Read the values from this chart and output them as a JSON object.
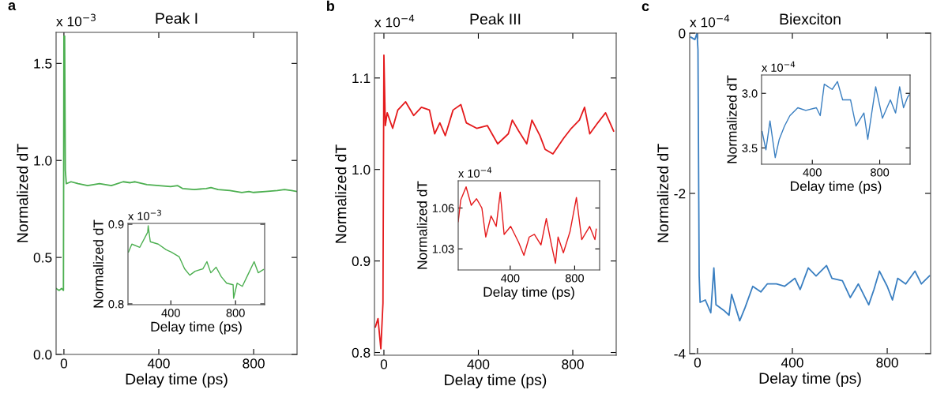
{
  "chart_data": [
    {
      "type": "line",
      "title": "Peak I",
      "xlabel": "Delay time (ps)",
      "ylabel": "Normalized dT",
      "annotations": [
        "a",
        "x 10$^{−3}$"
      ],
      "xlim": [
        -33,
        983
      ],
      "ylim": [
        0,
        1.66
      ],
      "xticks": [
        0,
        400,
        800
      ],
      "yticks": [
        {
          "value": 0,
          "label": "0.0"
        },
        0.5,
        {
          "value": 1,
          "label": "1.0"
        },
        1.5
      ],
      "series": [
        {
          "color": "#4caf50",
          "x": [
            -33,
            -20,
            -10,
            -2,
            0,
            1,
            3,
            6,
            10,
            30,
            60,
            100,
            150,
            200,
            250,
            280,
            300,
            350,
            400,
            450,
            480,
            500,
            550,
            600,
            620,
            650,
            700,
            750,
            780,
            800,
            850,
            900,
            930,
            960,
            983
          ],
          "values": [
            0.34,
            0.33,
            0.34,
            0.33,
            1.64,
            null,
            1.64,
            0.95,
            0.88,
            0.89,
            0.88,
            0.87,
            0.88,
            0.87,
            0.89,
            0.885,
            0.89,
            0.875,
            0.87,
            0.865,
            0.87,
            0.855,
            0.85,
            0.855,
            0.86,
            0.85,
            0.845,
            0.835,
            0.84,
            0.835,
            0.84,
            0.845,
            0.85,
            0.845,
            0.84
          ]
        }
      ]
    },
    {
      "type": "line",
      "xlabel": "Delay time (ps)",
      "ylabel": "Normalized dT",
      "annotations": [
        "x 10$^{−3}$"
      ],
      "xlim": [
        135,
        980
      ],
      "ylim": [
        0.799,
        0.901
      ],
      "xticks": [
        400,
        800
      ],
      "yticks": [
        0.8,
        0.9
      ],
      "series": [
        {
          "color": "#4caf50",
          "x": [
            138,
            159,
            208,
            257,
            260,
            273,
            322,
            371,
            403,
            452,
            485,
            517,
            550,
            598,
            623,
            647,
            680,
            712,
            745,
            785,
            788,
            810,
            842,
            875,
            915,
            940,
            972
          ],
          "values": [
            0.865,
            0.875,
            0.871,
            0.89,
            0.898,
            0.878,
            0.875,
            0.868,
            0.865,
            0.859,
            0.844,
            0.836,
            0.841,
            0.844,
            0.853,
            0.839,
            0.846,
            0.834,
            0.826,
            0.824,
            0.807,
            0.826,
            0.822,
            0.836,
            0.853,
            0.839,
            0.843
          ]
        }
      ]
    },
    {
      "type": "line",
      "title": "Peak III",
      "xlabel": "Delay time (ps)",
      "ylabel": "Normalized dT",
      "annotations": [
        "b",
        "x 10$^{−4}$"
      ],
      "xlim": [
        -40,
        984
      ],
      "ylim": [
        0.797,
        1.149
      ],
      "xticks": [
        0,
        400,
        800
      ],
      "yticks": [
        0.8,
        0.9,
        {
          "value": 1,
          "label": "1.0"
        },
        1.1
      ],
      "series": [
        {
          "color": "#e41a1c",
          "x": [
            -36,
            -25,
            -13,
            -4,
            0,
            6,
            14,
            37,
            59,
            92,
            126,
            159,
            193,
            215,
            237,
            260,
            293,
            326,
            349,
            393,
            438,
            482,
            527,
            544,
            571,
            605,
            627,
            661,
            683,
            716,
            761,
            794,
            828,
            850,
            872,
            906,
            939,
            973
          ],
          "values": [
            0.828,
            0.837,
            0.804,
            0.854,
            1.125,
            1.048,
            1.062,
            1.045,
            1.065,
            1.074,
            1.059,
            1.068,
            1.065,
            1.039,
            1.051,
            1.037,
            1.065,
            1.071,
            1.051,
            1.045,
            1.048,
            1.028,
            1.039,
            1.054,
            1.042,
            1.028,
            1.054,
            1.037,
            1.022,
            1.017,
            1.034,
            1.045,
            1.054,
            1.068,
            1.039,
            1.051,
            1.062,
            1.042
          ]
        }
      ]
    },
    {
      "type": "line",
      "xlabel": "Delay time (ps)",
      "ylabel": "Normalized dT",
      "annotations": [
        "x 10$^{−4}$"
      ],
      "xlim": [
        77,
        955
      ],
      "ylim": [
        1.0145,
        1.08
      ],
      "xticks": [
        400,
        800
      ],
      "yticks": [
        1.03,
        1.06
      ],
      "series": [
        {
          "color": "#e41a1c",
          "x": [
            77,
            93,
            126,
            158,
            191,
            224,
            248,
            281,
            313,
            338,
            362,
            403,
            452,
            485,
            518,
            550,
            591,
            624,
            656,
            681,
            697,
            730,
            771,
            811,
            844,
            893,
            926,
            934
          ],
          "values": [
            1.05,
            1.066,
            1.0755,
            1.062,
            1.0668,
            1.06,
            1.0387,
            1.0542,
            1.0465,
            1.0716,
            1.0406,
            1.0465,
            1.0348,
            1.0252,
            1.0387,
            1.0406,
            1.0329,
            1.0523,
            1.0329,
            1.0194,
            1.0387,
            1.0271,
            1.0426,
            1.0677,
            1.0368,
            1.0465,
            1.0368,
            1.0445
          ]
        }
      ]
    },
    {
      "type": "line",
      "title": "Biexciton",
      "xlabel": "Delay time (ps)",
      "ylabel": "Normalized dT",
      "annotations": [
        "c",
        "x 10$^{−4}$"
      ],
      "xlim": [
        -33,
        983
      ],
      "ylim": [
        -4,
        0
      ],
      "xticks": [
        0,
        400,
        800
      ],
      "yticks": [
        {
          "value": -4,
          "label": "-4"
        },
        {
          "value": -2,
          "label": "-2"
        },
        0
      ],
      "series": [
        {
          "color": "#3a7fc1",
          "x": [
            -28,
            -11,
            -2,
            2,
            7,
            11,
            33,
            56,
            69,
            78,
            111,
            133,
            144,
            178,
            200,
            233,
            267,
            294,
            333,
            367,
            411,
            433,
            467,
            500,
            544,
            567,
            611,
            644,
            678,
            722,
            744,
            767,
            800,
            822,
            844,
            878,
            917,
            944,
            978
          ],
          "values": [
            -0.05,
            -0.08,
            0,
            -0.21,
            -3.03,
            -3.36,
            -3.33,
            -3.49,
            -2.93,
            -3.39,
            -3.46,
            -3.52,
            -3.26,
            -3.59,
            -3.43,
            -3.16,
            -3.23,
            -3.13,
            -3.13,
            -3.16,
            -3.06,
            -3.2,
            -2.93,
            -3.03,
            -2.9,
            -3.06,
            -3.09,
            -3.3,
            -3.13,
            -3.39,
            -3.2,
            -2.97,
            -3.16,
            -3.33,
            -3.06,
            -3.13,
            -2.97,
            -3.13,
            -3.03
          ]
        }
      ]
    },
    {
      "type": "line",
      "xlabel": "Delay time (ps)",
      "ylabel": "Normalized dT",
      "annotations": [
        "x 10$^{−4}$"
      ],
      "xlim": [
        99,
        980
      ],
      "ylim": [
        3.649,
        2.832
      ],
      "xticks": [
        400,
        800
      ],
      "yticks": [
        {
          "value": 3,
          "label": "3.0"
        },
        3.5
      ],
      "series": [
        {
          "color": "#3a7fc1",
          "x": [
            102,
            125,
            149,
            180,
            204,
            235,
            267,
            314,
            361,
            424,
            447,
            471,
            518,
            549,
            580,
            627,
            659,
            706,
            729,
            776,
            816,
            863,
            894,
            918,
            941,
            965,
            976
          ],
          "values": [
            3.349,
            3.517,
            3.252,
            3.589,
            3.421,
            3.3,
            3.204,
            3.132,
            3.156,
            3.132,
            3.204,
            2.916,
            2.964,
            2.892,
            3.06,
            3.06,
            3.3,
            3.18,
            3.421,
            2.94,
            3.228,
            3.06,
            3.18,
            2.94,
            3.132,
            3.036,
            3.012
          ]
        }
      ]
    }
  ]
}
